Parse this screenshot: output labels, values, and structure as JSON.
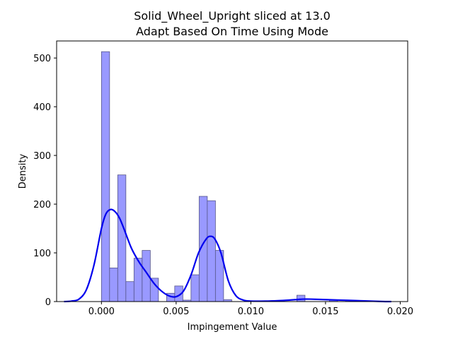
{
  "chart_data": {
    "type": "bar",
    "title": "Solid_Wheel_Upright sliced at 13.0",
    "subtitle": "Adapt Based On Time   Using Mode",
    "xlabel": "Impingement Value",
    "ylabel": "Density",
    "xlim": [
      -0.003,
      0.0205
    ],
    "ylim": [
      0,
      535
    ],
    "xticks": [
      {
        "value": 0.0,
        "label": "0.000"
      },
      {
        "value": 0.005,
        "label": "0.005"
      },
      {
        "value": 0.01,
        "label": "0.010"
      },
      {
        "value": 0.015,
        "label": "0.015"
      },
      {
        "value": 0.02,
        "label": "0.020"
      }
    ],
    "yticks": [
      {
        "value": 0,
        "label": "0"
      },
      {
        "value": 100,
        "label": "100"
      },
      {
        "value": 200,
        "label": "200"
      },
      {
        "value": 300,
        "label": "300"
      },
      {
        "value": 400,
        "label": "400"
      },
      {
        "value": 500,
        "label": "500"
      }
    ],
    "histogram": {
      "bin_width": 0.000545,
      "bins": [
        {
          "x0": 0.0,
          "density": 513
        },
        {
          "x0": 0.000545,
          "density": 69
        },
        {
          "x0": 0.00109,
          "density": 260
        },
        {
          "x0": 0.001635,
          "density": 41
        },
        {
          "x0": 0.00218,
          "density": 89
        },
        {
          "x0": 0.002725,
          "density": 105
        },
        {
          "x0": 0.00327,
          "density": 48
        },
        {
          "x0": 0.003815,
          "density": 0
        },
        {
          "x0": 0.00436,
          "density": 17
        },
        {
          "x0": 0.004905,
          "density": 32
        },
        {
          "x0": 0.00545,
          "density": 3
        },
        {
          "x0": 0.005995,
          "density": 55
        },
        {
          "x0": 0.00654,
          "density": 216
        },
        {
          "x0": 0.007085,
          "density": 207
        },
        {
          "x0": 0.00763,
          "density": 105
        },
        {
          "x0": 0.008175,
          "density": 4
        },
        {
          "x0": 0.01308,
          "density": 13
        },
        {
          "x0": 0.01526,
          "density": 3
        },
        {
          "x0": 0.01635,
          "density": 3
        }
      ],
      "fill": "#9999ff",
      "edge": "#555588"
    },
    "kde": {
      "color": "#0000ee",
      "x": [
        -0.0025,
        -0.002,
        -0.0015,
        -0.001,
        -0.0005,
        0.0,
        0.0003,
        0.0006,
        0.0009,
        0.0012,
        0.0015,
        0.002,
        0.0025,
        0.003,
        0.0035,
        0.004,
        0.0045,
        0.005,
        0.0055,
        0.006,
        0.0065,
        0.007,
        0.0073,
        0.0076,
        0.008,
        0.0085,
        0.009,
        0.0095,
        0.01,
        0.011,
        0.012,
        0.013,
        0.0135,
        0.014,
        0.015,
        0.016,
        0.017,
        0.018,
        0.019,
        0.0194
      ],
      "y": [
        0,
        1,
        5,
        25,
        75,
        150,
        180,
        189,
        185,
        172,
        150,
        110,
        82,
        60,
        38,
        22,
        12,
        10,
        22,
        55,
        100,
        128,
        134,
        128,
        100,
        42,
        12,
        3,
        1,
        1,
        2,
        4,
        5,
        5,
        4,
        3,
        2,
        1,
        0,
        0
      ]
    }
  }
}
